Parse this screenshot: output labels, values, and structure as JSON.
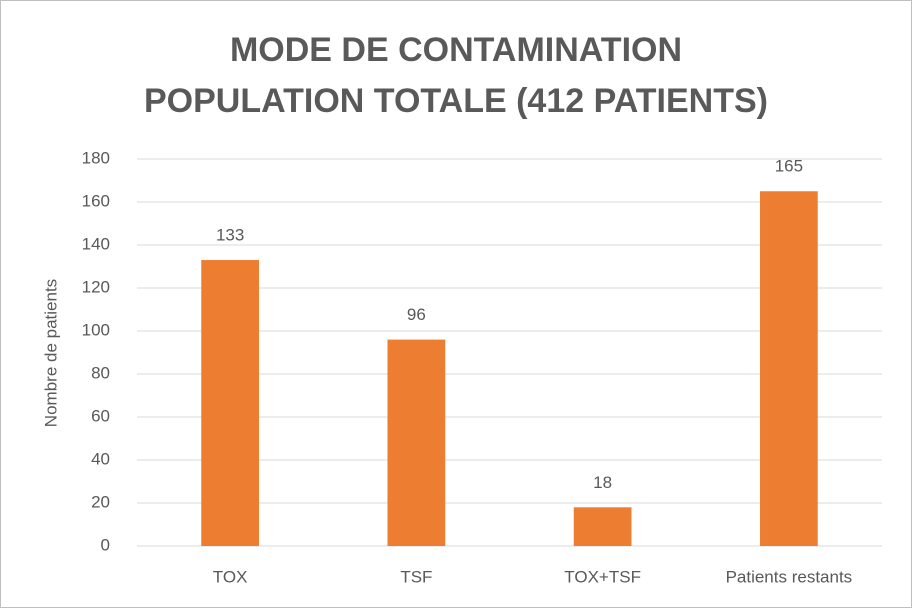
{
  "chart_data": {
    "type": "bar",
    "title": [
      "MODE DE CONTAMINATION",
      "POPULATION TOTALE (412 PATIENTS)"
    ],
    "y_label": "Nombre de patients",
    "categories": [
      "TOX",
      "TSF",
      "TOX+TSF",
      "Patients restants"
    ],
    "values": [
      133,
      96,
      18,
      165
    ],
    "color": "#ed7d31",
    "ylim": [
      0,
      180
    ],
    "yticks": [
      0,
      20,
      40,
      60,
      80,
      100,
      120,
      140,
      160,
      180
    ],
    "grid": true
  }
}
